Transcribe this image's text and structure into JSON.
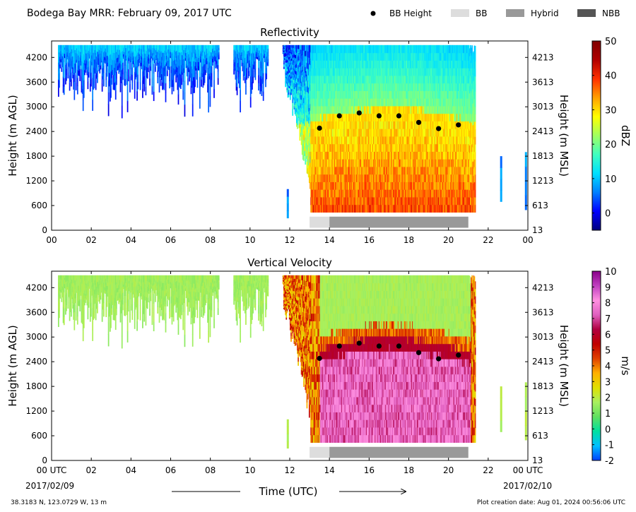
{
  "header": {
    "title": "Bodega Bay MRR:  February 09, 2017 UTC",
    "legend": [
      {
        "label": "BB Height",
        "kind": "dot",
        "color": "#000000"
      },
      {
        "label": "BB",
        "kind": "bar",
        "color": "#dddddd"
      },
      {
        "label": "Hybrid",
        "kind": "bar",
        "color": "#999999"
      },
      {
        "label": "NBB",
        "kind": "bar",
        "color": "#555555"
      }
    ]
  },
  "footer": {
    "location": "38.3183 N, 123.0729 W, 13 m",
    "creation": "Plot creation date: Aug 01, 2024 00:56:06 UTC",
    "xlabel": "Time (UTC)",
    "date_start": "2017/02/09",
    "date_end": "2017/02/10"
  },
  "chart_data": [
    {
      "type": "heatmap",
      "title": "Reflectivity",
      "ylabel": "Height (m AGL)",
      "ylabel_right": "Height (m MSL)",
      "xlim": [
        0,
        24
      ],
      "ylim": [
        0,
        4600
      ],
      "x_ticks": [
        "00",
        "02",
        "04",
        "06",
        "08",
        "10",
        "12",
        "14",
        "16",
        "18",
        "20",
        "22",
        "00"
      ],
      "y_ticks": [
        0,
        600,
        1200,
        1800,
        2400,
        3000,
        3600,
        4200
      ],
      "y_ticks_right": [
        13,
        613,
        1213,
        1813,
        2413,
        3013,
        3613,
        4213
      ],
      "colorbar": {
        "label": "dBZ",
        "min": -5,
        "max": 50,
        "ticks": [
          0,
          10,
          20,
          30,
          40,
          50
        ],
        "colors": [
          "#00007f",
          "#0000ff",
          "#0080ff",
          "#00e0ff",
          "#40ffc0",
          "#a0ff60",
          "#ffff00",
          "#ffa000",
          "#ff3000",
          "#b00000",
          "#7f0000"
        ]
      },
      "bb_height": {
        "x": [
          13.5,
          14.5,
          15.5,
          16.5,
          17.5,
          18.5,
          19.5,
          20.5
        ],
        "y": [
          2480,
          2780,
          2850,
          2780,
          2780,
          2620,
          2470,
          2560
        ]
      },
      "bb_type": [
        {
          "start": 13.0,
          "end": 14.0,
          "type": "BB"
        },
        {
          "start": 14.0,
          "end": 21.0,
          "type": "Hybrid"
        }
      ]
    },
    {
      "type": "heatmap",
      "title": "Vertical Velocity",
      "ylabel": "Height (m AGL)",
      "ylabel_right": "Height (m MSL)",
      "xlim": [
        0,
        24
      ],
      "ylim": [
        0,
        4600
      ],
      "x_ticks": [
        "00 UTC",
        "02",
        "04",
        "06",
        "08",
        "10",
        "12",
        "14",
        "16",
        "18",
        "20",
        "22",
        "00 UTC"
      ],
      "y_ticks": [
        0,
        600,
        1200,
        1800,
        2400,
        3000,
        3600,
        4200
      ],
      "y_ticks_right": [
        13,
        613,
        1213,
        1813,
        2413,
        3013,
        3613,
        4213
      ],
      "colorbar": {
        "label": "m/s",
        "min": -2,
        "max": 10,
        "ticks": [
          -2,
          -1,
          0,
          1,
          2,
          3,
          4,
          5,
          6,
          7,
          8,
          9,
          10
        ],
        "colors": [
          "#0040ff",
          "#00c0ff",
          "#00e0a0",
          "#60e060",
          "#a8f060",
          "#e0e000",
          "#ffb000",
          "#e04000",
          "#c00000",
          "#b00040",
          "#e060c0",
          "#ff90e0",
          "#c040c0",
          "#8a008a"
        ]
      },
      "bb_height": {
        "x": [
          13.5,
          14.5,
          15.5,
          16.5,
          17.5,
          18.5,
          19.5,
          20.5
        ],
        "y": [
          2480,
          2780,
          2850,
          2780,
          2780,
          2620,
          2470,
          2560
        ]
      },
      "bb_type": [
        {
          "start": 13.0,
          "end": 14.0,
          "type": "BB"
        },
        {
          "start": 14.0,
          "end": 21.0,
          "type": "Hybrid"
        }
      ]
    }
  ]
}
